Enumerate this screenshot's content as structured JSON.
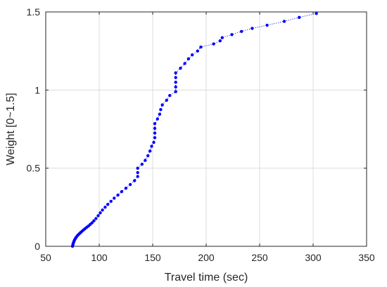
{
  "chart_data": {
    "type": "scatter",
    "title": "",
    "xlabel": "Travel time (sec)",
    "ylabel": "Weight [0~1.5]",
    "xlim": [
      50,
      350
    ],
    "ylim": [
      0,
      1.5
    ],
    "xticks": [
      50,
      100,
      150,
      200,
      250,
      300,
      350
    ],
    "yticks": [
      0,
      0.5,
      1,
      1.5
    ],
    "xtick_labels": [
      "50",
      "100",
      "150",
      "200",
      "250",
      "300",
      "350"
    ],
    "ytick_labels": [
      "0",
      "0.5",
      "1",
      "1.5"
    ],
    "grid": true,
    "line_style": "dotted",
    "color": "#0000ff",
    "x": [
      75.0,
      75.3,
      75.6,
      76.0,
      76.4,
      77.0,
      77.6,
      78.4,
      79.3,
      80.3,
      81.5,
      82.7,
      84.0,
      85.4,
      86.8,
      88.4,
      90.0,
      91.6,
      93.2,
      95.0,
      97.0,
      99.0,
      101.0,
      103.0,
      105.5,
      108.0,
      111.0,
      114.0,
      117.5,
      121.0,
      125.0,
      129.0,
      133.0,
      136.0,
      136.0,
      136.0,
      140.0,
      143.0,
      145.5,
      147.5,
      149.0,
      151.0,
      152.0,
      152.0,
      152.0,
      152.0,
      154.5,
      156.5,
      157.5,
      159.0,
      163.0,
      166.0,
      171.5,
      171.5,
      171.5,
      171.5,
      171.5,
      176.0,
      180.0,
      183.5,
      187.0,
      192.0,
      195.0,
      207.0,
      213.0,
      215.0,
      224.0,
      233.0,
      243.0,
      257.0,
      273.0,
      287.0,
      303.0
    ],
    "y": [
      0.0,
      0.008,
      0.016,
      0.024,
      0.032,
      0.041,
      0.049,
      0.057,
      0.065,
      0.073,
      0.081,
      0.089,
      0.097,
      0.105,
      0.113,
      0.122,
      0.13,
      0.14,
      0.15,
      0.163,
      0.178,
      0.196,
      0.214,
      0.232,
      0.25,
      0.268,
      0.288,
      0.308,
      0.328,
      0.35,
      0.372,
      0.395,
      0.42,
      0.447,
      0.472,
      0.5,
      0.525,
      0.55,
      0.58,
      0.61,
      0.64,
      0.665,
      0.695,
      0.725,
      0.755,
      0.785,
      0.815,
      0.845,
      0.875,
      0.905,
      0.935,
      0.965,
      0.99,
      1.02,
      1.05,
      1.08,
      1.11,
      1.14,
      1.17,
      1.2,
      1.225,
      1.25,
      1.275,
      1.295,
      1.315,
      1.335,
      1.355,
      1.375,
      1.395,
      1.415,
      1.44,
      1.465,
      1.49
    ]
  }
}
